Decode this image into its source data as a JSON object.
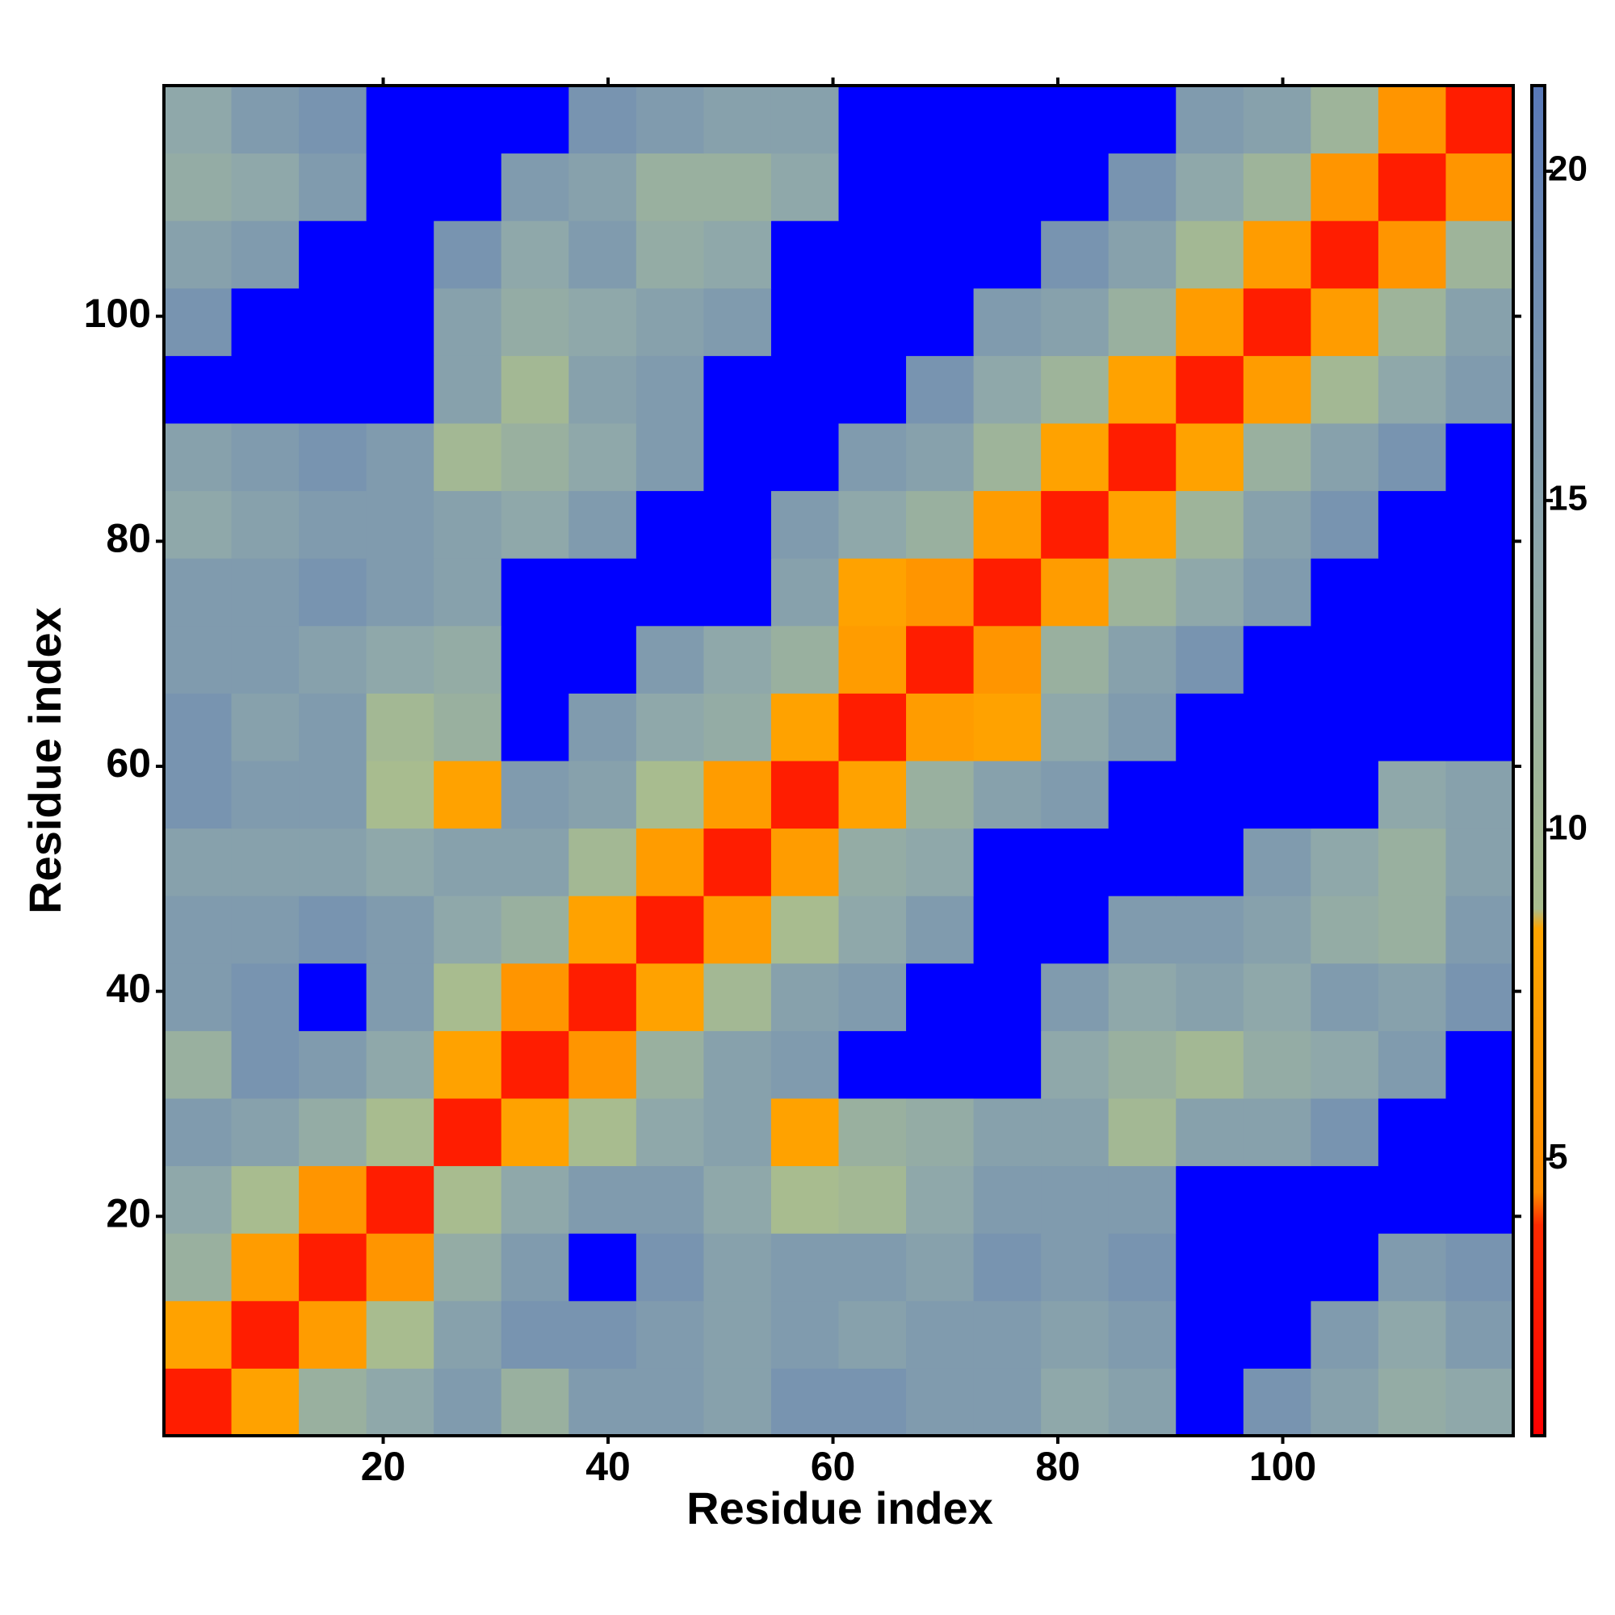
{
  "chart_data": {
    "type": "heatmap",
    "x_label": "Residue index",
    "y_label": "Residue index",
    "x": [
      3.5,
      9.5,
      15.5,
      21.5,
      27.5,
      33.5,
      39.5,
      45.5,
      51.5,
      57.5,
      63.5,
      69.5,
      75.5,
      81.5,
      87.5,
      93.5,
      99.5,
      105.5,
      111.5,
      117.5
    ],
    "y": [
      3.5,
      9.5,
      15.5,
      21.5,
      27.5,
      33.5,
      39.5,
      45.5,
      51.5,
      57.5,
      63.5,
      69.5,
      75.5,
      81.5,
      87.5,
      93.5,
      99.5,
      105.5,
      111.5,
      117.5
    ],
    "z": [
      [
        3,
        8,
        12,
        14,
        16,
        12,
        16,
        16,
        15,
        17,
        17,
        16,
        16,
        14,
        15,
        null,
        17,
        15,
        13,
        14
      ],
      [
        8,
        3,
        7,
        9,
        15,
        17,
        17,
        16,
        15,
        16,
        15,
        16,
        16,
        15,
        16,
        null,
        null,
        16,
        14,
        16
      ],
      [
        12,
        7,
        3,
        6,
        13,
        16,
        null,
        17,
        15,
        16,
        16,
        15,
        17,
        16,
        17,
        null,
        null,
        null,
        16,
        17
      ],
      [
        14,
        9,
        6,
        3,
        9,
        14,
        16,
        16,
        14,
        9,
        10,
        14,
        16,
        16,
        16,
        null,
        null,
        null,
        null,
        null
      ],
      [
        16,
        15,
        13,
        9,
        3,
        8,
        9,
        14,
        15,
        8,
        12,
        13,
        15,
        15,
        10,
        15,
        15,
        17,
        null,
        null
      ],
      [
        12,
        17,
        16,
        14,
        8,
        3,
        6,
        12,
        15,
        16,
        null,
        null,
        null,
        14,
        12,
        10,
        13,
        14,
        16,
        null
      ],
      [
        16,
        17,
        null,
        16,
        9,
        6,
        3,
        8,
        10,
        15,
        16,
        null,
        null,
        16,
        14,
        15,
        14,
        16,
        15,
        17
      ],
      [
        16,
        16,
        17,
        16,
        14,
        12,
        8,
        3,
        7,
        9,
        14,
        16,
        null,
        null,
        16,
        16,
        15,
        13,
        12,
        16
      ],
      [
        15,
        15,
        15,
        14,
        15,
        15,
        10,
        7,
        3,
        7,
        13,
        14,
        null,
        null,
        null,
        null,
        16,
        14,
        12,
        15
      ],
      [
        17,
        16,
        16,
        9,
        8,
        16,
        15,
        9,
        7,
        3,
        8,
        12,
        15,
        16,
        null,
        null,
        null,
        null,
        14,
        15
      ],
      [
        17,
        15,
        16,
        10,
        12,
        null,
        16,
        14,
        13,
        8,
        3,
        7,
        8,
        14,
        16,
        null,
        null,
        null,
        null,
        null
      ],
      [
        16,
        16,
        15,
        14,
        13,
        null,
        null,
        16,
        14,
        12,
        7,
        3,
        6,
        12,
        15,
        17,
        null,
        null,
        null,
        null
      ],
      [
        16,
        16,
        17,
        16,
        15,
        null,
        null,
        null,
        null,
        15,
        8,
        6,
        3,
        7,
        11,
        14,
        16,
        null,
        null,
        null
      ],
      [
        14,
        15,
        16,
        16,
        15,
        14,
        16,
        null,
        null,
        16,
        14,
        12,
        7,
        3,
        8,
        11,
        15,
        17,
        null,
        null
      ],
      [
        15,
        16,
        17,
        16,
        10,
        12,
        14,
        16,
        null,
        null,
        16,
        15,
        11,
        8,
        3,
        8,
        12,
        15,
        17,
        null
      ],
      [
        null,
        null,
        null,
        null,
        15,
        10,
        15,
        16,
        null,
        null,
        null,
        17,
        14,
        11,
        8,
        3,
        7,
        10,
        14,
        16
      ],
      [
        17,
        null,
        null,
        null,
        15,
        13,
        14,
        15,
        16,
        null,
        null,
        null,
        16,
        15,
        12,
        7,
        3,
        7,
        11,
        15
      ],
      [
        15,
        16,
        null,
        null,
        17,
        14,
        16,
        13,
        14,
        null,
        null,
        null,
        null,
        17,
        15,
        10,
        7,
        3,
        6,
        11
      ],
      [
        13,
        14,
        16,
        null,
        null,
        16,
        15,
        12,
        12,
        14,
        null,
        null,
        null,
        null,
        17,
        14,
        11,
        6,
        3,
        6
      ],
      [
        14,
        16,
        17,
        null,
        null,
        null,
        17,
        16,
        15,
        15,
        null,
        null,
        null,
        null,
        null,
        16,
        15,
        11,
        6,
        3
      ]
    ],
    "xlim": [
      0.5,
      120.5
    ],
    "ylim": [
      0.5,
      120.5
    ],
    "xticks": [
      20,
      40,
      60,
      80,
      100
    ],
    "yticks": [
      20,
      40,
      60,
      80,
      100
    ],
    "zlim": [
      0.8,
      21.3
    ],
    "zticks": [
      5,
      10,
      15,
      20
    ],
    "colorscale": [
      [
        0.8,
        "#ff0000"
      ],
      [
        4,
        "#ff2a00"
      ],
      [
        4.5,
        "#ff8c00"
      ],
      [
        8.5,
        "#ffa500"
      ],
      [
        8.8,
        "#a9bd8e"
      ],
      [
        14,
        "#8fa8aa"
      ],
      [
        21.3,
        "#5878b8"
      ]
    ],
    "na_color": "#0000ff"
  }
}
